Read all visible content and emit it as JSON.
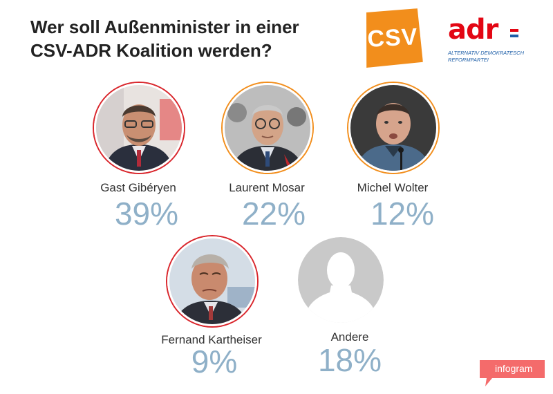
{
  "title_line1": "Wer soll Außenminister in einer",
  "title_line2": "CSV-ADR Koalition werden?",
  "logos": {
    "csv": {
      "text": "CSV",
      "color": "#f28e1c"
    },
    "adr": {
      "word": "adr",
      "line1": "ALTERNATIV DEMOKRATESCH",
      "line2": "REFORMPARTEI",
      "color": "#e30613",
      "accent": "#1f5fa8"
    }
  },
  "ring_colors": {
    "adr": "#d9262c",
    "csv": "#f28e1c"
  },
  "chart_data": {
    "type": "table",
    "categories": [
      "Gast Gibéryen",
      "Laurent Mosar",
      "Michel Wolter",
      "Fernand Kartheiser",
      "Andere"
    ],
    "values": [
      39,
      22,
      12,
      9,
      18
    ],
    "labels": [
      "39%",
      "22%",
      "12%",
      "9%",
      "18%"
    ],
    "parties": [
      "adr",
      "csv",
      "csv",
      "adr",
      "none"
    ],
    "unit": "%"
  },
  "candidates": [
    {
      "name": "Gast Gibéryen",
      "pct": "39%",
      "party": "adr"
    },
    {
      "name": "Laurent Mosar",
      "pct": "22%",
      "party": "csv"
    },
    {
      "name": "Michel Wolter",
      "pct": "12%",
      "party": "csv"
    },
    {
      "name": "Fernand Kartheiser",
      "pct": "9%",
      "party": "adr"
    },
    {
      "name": "Andere",
      "pct": "18%",
      "party": "none"
    }
  ],
  "colors": {
    "percent": "#8fb0c8",
    "silhouette_bg": "#c9c9c9",
    "silhouette_fg": "#ffffff"
  },
  "footer": {
    "brand": "infogram",
    "color": "#f46b6b"
  }
}
